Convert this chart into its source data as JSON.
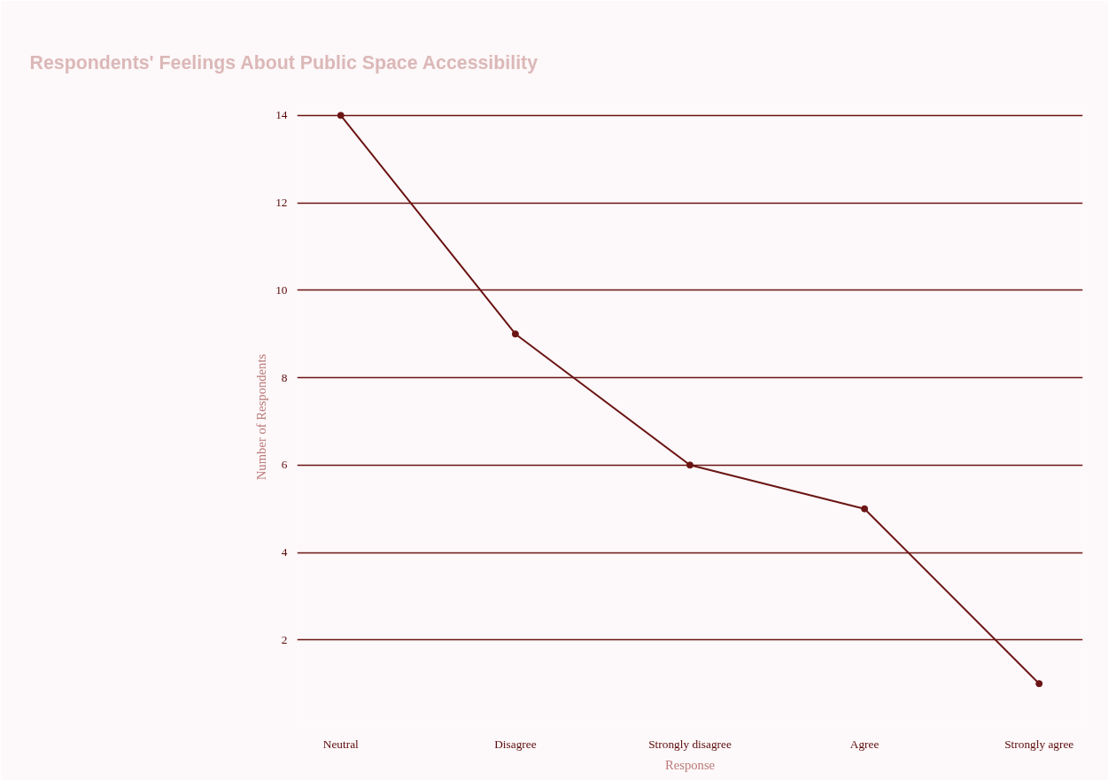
{
  "chart_data": {
    "type": "line",
    "title": "Respondents' Feelings About Public Space Accessibility",
    "xlabel": "Response",
    "ylabel": "Number of Respondents",
    "categories": [
      "Neutral",
      "Disagree",
      "Strongly disagree",
      "Agree",
      "Strongly agree"
    ],
    "series": [
      {
        "color": "#6b1414",
        "values": [
          14,
          9,
          6,
          5,
          1
        ]
      }
    ],
    "ylim": [
      0,
      14.2
    ],
    "yticks": [
      2,
      4,
      6,
      8,
      10,
      12,
      14
    ],
    "grid": "y",
    "marker": "circle",
    "line_style": "solid"
  }
}
